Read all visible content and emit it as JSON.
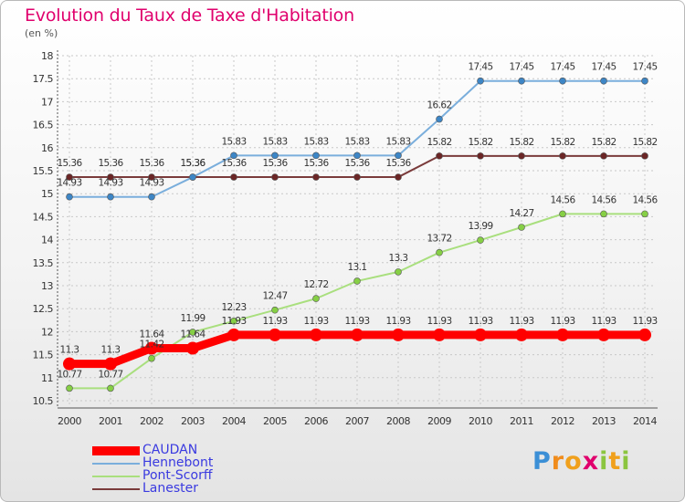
{
  "chart_data": {
    "type": "line",
    "title": "Evolution du Taux de Taxe d'Habitation",
    "unit": "(en %)",
    "x": [
      "2000",
      "2001",
      "2002",
      "2003",
      "2004",
      "2005",
      "2006",
      "2007",
      "2008",
      "2009",
      "2010",
      "2011",
      "2012",
      "2013",
      "2014"
    ],
    "ylim": [
      10.5,
      18
    ],
    "yticks": [
      "10.5",
      "11",
      "11.5",
      "12",
      "12.5",
      "13",
      "13.5",
      "14",
      "14.5",
      "15",
      "15.5",
      "16",
      "16.5",
      "17",
      "17.5",
      "18"
    ],
    "grid": true,
    "legend_position": "bottom-left",
    "series": [
      {
        "name": "CAUDAN",
        "color": "#ff0000",
        "marker": "#ff0000",
        "width": "thick",
        "values": [
          11.3,
          11.3,
          11.64,
          11.64,
          11.93,
          11.93,
          11.93,
          11.93,
          11.93,
          11.93,
          11.93,
          11.93,
          11.93,
          11.93,
          11.93
        ],
        "labels": [
          "11.3",
          "11.3",
          "11.64",
          "11.64",
          "11.93",
          "11.93",
          "11.93",
          "11.93",
          "11.93",
          "11.93",
          "11.93",
          "11.93",
          "11.93",
          "11.93",
          "11.93"
        ]
      },
      {
        "name": "Hennebont",
        "color": "#7aaedc",
        "marker": "#3d86c6",
        "width": "thin",
        "values": [
          14.93,
          14.93,
          14.93,
          15.36,
          15.83,
          15.83,
          15.83,
          15.83,
          15.83,
          16.62,
          17.45,
          17.45,
          17.45,
          17.45,
          17.45
        ],
        "labels": [
          "14.93",
          "14.93",
          "14.93",
          "15.36",
          "15.83",
          "15.83",
          "15.83",
          "15.83",
          "15.83",
          "16.62",
          "17.45",
          "17.45",
          "17.45",
          "17.45",
          "17.45"
        ]
      },
      {
        "name": "Pont-Scorff",
        "color": "#a9df7e",
        "marker": "#86cf45",
        "width": "thin",
        "values": [
          10.77,
          10.77,
          11.42,
          11.99,
          12.23,
          12.47,
          12.72,
          13.1,
          13.3,
          13.72,
          13.99,
          14.27,
          14.56,
          14.56,
          14.56
        ],
        "labels": [
          "10.77",
          "10.77",
          "11.42",
          "11.99",
          "12.23",
          "12.47",
          "12.72",
          "13.1",
          "13.3",
          "13.72",
          "13.99",
          "14.27",
          "14.56",
          "14.56",
          "14.56"
        ]
      },
      {
        "name": "Lanester",
        "color": "#7a3b3b",
        "marker": "#6b2626",
        "width": "thin",
        "values": [
          15.36,
          15.36,
          15.36,
          15.36,
          15.36,
          15.36,
          15.36,
          15.36,
          15.36,
          15.82,
          15.82,
          15.82,
          15.82,
          15.82,
          15.82
        ],
        "labels": [
          "15.36",
          "15.36",
          "15.36",
          "15.36",
          "15.36",
          "15.36",
          "15.36",
          "15.36",
          "15.36",
          "15.82",
          "15.82",
          "15.82",
          "15.82",
          "15.82",
          "15.82"
        ]
      }
    ]
  },
  "brand": {
    "letters": [
      "P",
      "r",
      "o",
      "x",
      "i",
      "t",
      "i"
    ],
    "colors": [
      "#3b8fd6",
      "#f08c1c",
      "#f0a01c",
      "#e0006d",
      "#8bc53f",
      "#f0a01c",
      "#8bc53f"
    ]
  }
}
